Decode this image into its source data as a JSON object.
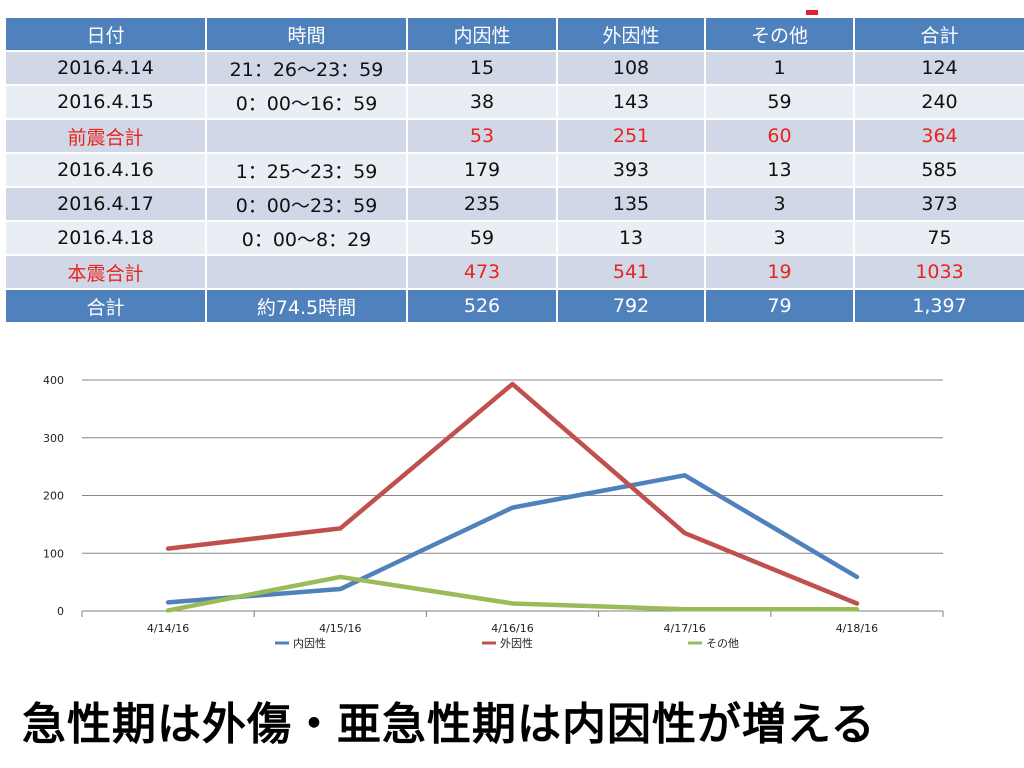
{
  "table": {
    "headers": [
      "日付",
      "時間",
      "内因性",
      "外因性",
      "その他",
      "合計"
    ],
    "rows": [
      {
        "date": "2016.4.14",
        "time": "21：26〜23：59",
        "internal": "15",
        "external": "108",
        "other": "1",
        "total": "124"
      },
      {
        "date": "2016.4.15",
        "time": "0：00〜16：59",
        "internal": "38",
        "external": "143",
        "other": "59",
        "total": "240"
      },
      {
        "date": "前震合計",
        "time": "",
        "internal": "53",
        "external": "251",
        "other": "60",
        "total": "364"
      },
      {
        "date": "2016.4.16",
        "time": "1：25〜23：59",
        "internal": "179",
        "external": "393",
        "other": "13",
        "total": "585"
      },
      {
        "date": "2016.4.17",
        "time": "0：00〜23：59",
        "internal": "235",
        "external": "135",
        "other": "3",
        "total": "373"
      },
      {
        "date": "2016.4.18",
        "time": "0：00〜8：29",
        "internal": "59",
        "external": "13",
        "other": "3",
        "total": "75"
      },
      {
        "date": "本震合計",
        "time": "",
        "internal": "473",
        "external": "541",
        "other": "19",
        "total": "1033"
      }
    ],
    "total_row": {
      "date": "合計",
      "time": "約74.5時間",
      "internal": "526",
      "external": "792",
      "other": "79",
      "total": "1,397"
    }
  },
  "chart_data": {
    "type": "line",
    "categories": [
      "4/14/16",
      "4/15/16",
      "4/16/16",
      "4/17/16",
      "4/18/16"
    ],
    "ylim": [
      0,
      400
    ],
    "yticks": [
      0,
      100,
      200,
      300,
      400
    ],
    "grid": true,
    "legend": "bottom",
    "series": [
      {
        "name": "内因性",
        "color": "#4f81bd",
        "values": [
          15,
          38,
          179,
          235,
          59
        ]
      },
      {
        "name": "外因性",
        "color": "#c0504d",
        "values": [
          108,
          143,
          393,
          135,
          13
        ]
      },
      {
        "name": "その他",
        "color": "#9bbb59",
        "values": [
          1,
          59,
          13,
          3,
          3
        ]
      }
    ]
  },
  "headline": "急性期は外傷・亜急性期は内因性が増える"
}
